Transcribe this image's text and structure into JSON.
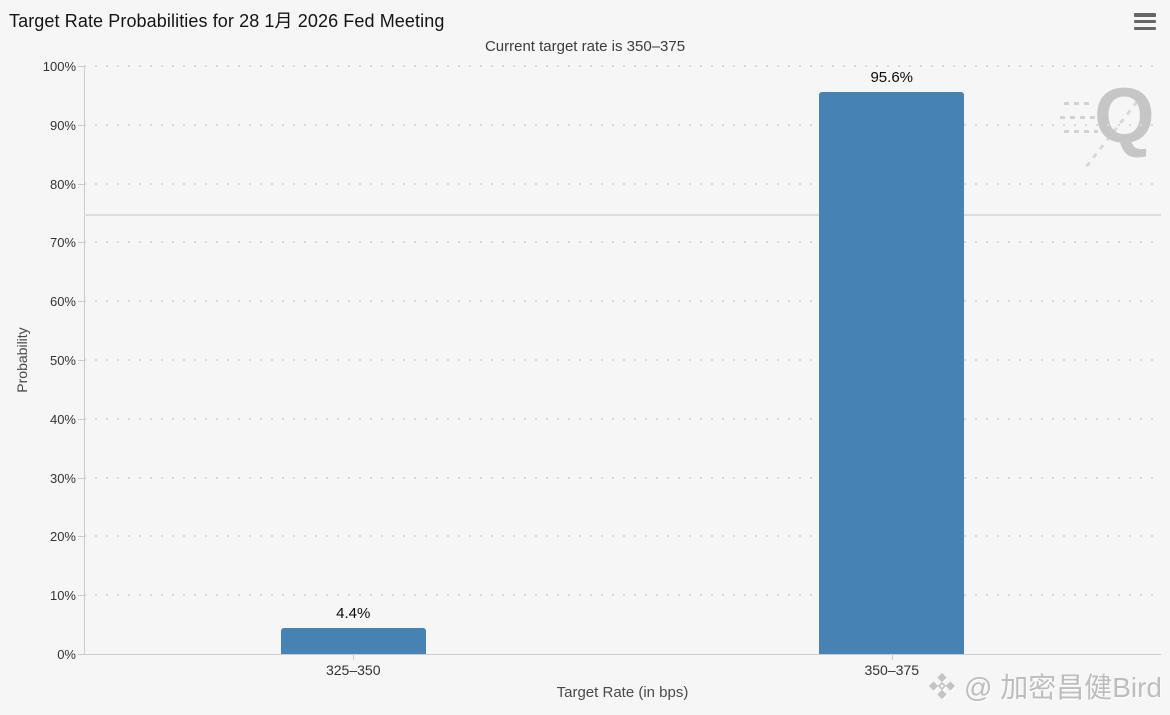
{
  "header": {
    "title": "Target Rate Probabilities for 28 1月 2026 Fed Meeting",
    "subtitle": "Current target rate is 350–375"
  },
  "menu": {
    "icon": "hamburger-icon"
  },
  "chart_data": {
    "type": "bar",
    "title": "Target Rate Probabilities for 28 1月 2026 Fed Meeting",
    "subtitle": "Current target rate is 350–375",
    "categories": [
      "325–350",
      "350–375"
    ],
    "values": [
      4.4,
      95.6
    ],
    "bar_labels": [
      "4.4%",
      "95.6%"
    ],
    "xlabel": "Target Rate (in bps)",
    "ylabel": "Probability",
    "ylim": [
      0,
      100
    ],
    "ytick_step": 10,
    "ytick_labels": [
      "0%",
      "10%",
      "20%",
      "30%",
      "40%",
      "50%",
      "60%",
      "70%",
      "80%",
      "90%",
      "100%"
    ],
    "grid": "dotted-horizontal",
    "legend": "none",
    "bar_color": "#4682b4",
    "grid_color": "#d9d9d9",
    "axis_color": "#cbcbcb",
    "reference_line_percent": 74.7,
    "reference_line_color": "#dcdcdc"
  },
  "watermarks": {
    "q_letter": "Q",
    "credit_text": "@ 加密昌健Bird"
  }
}
